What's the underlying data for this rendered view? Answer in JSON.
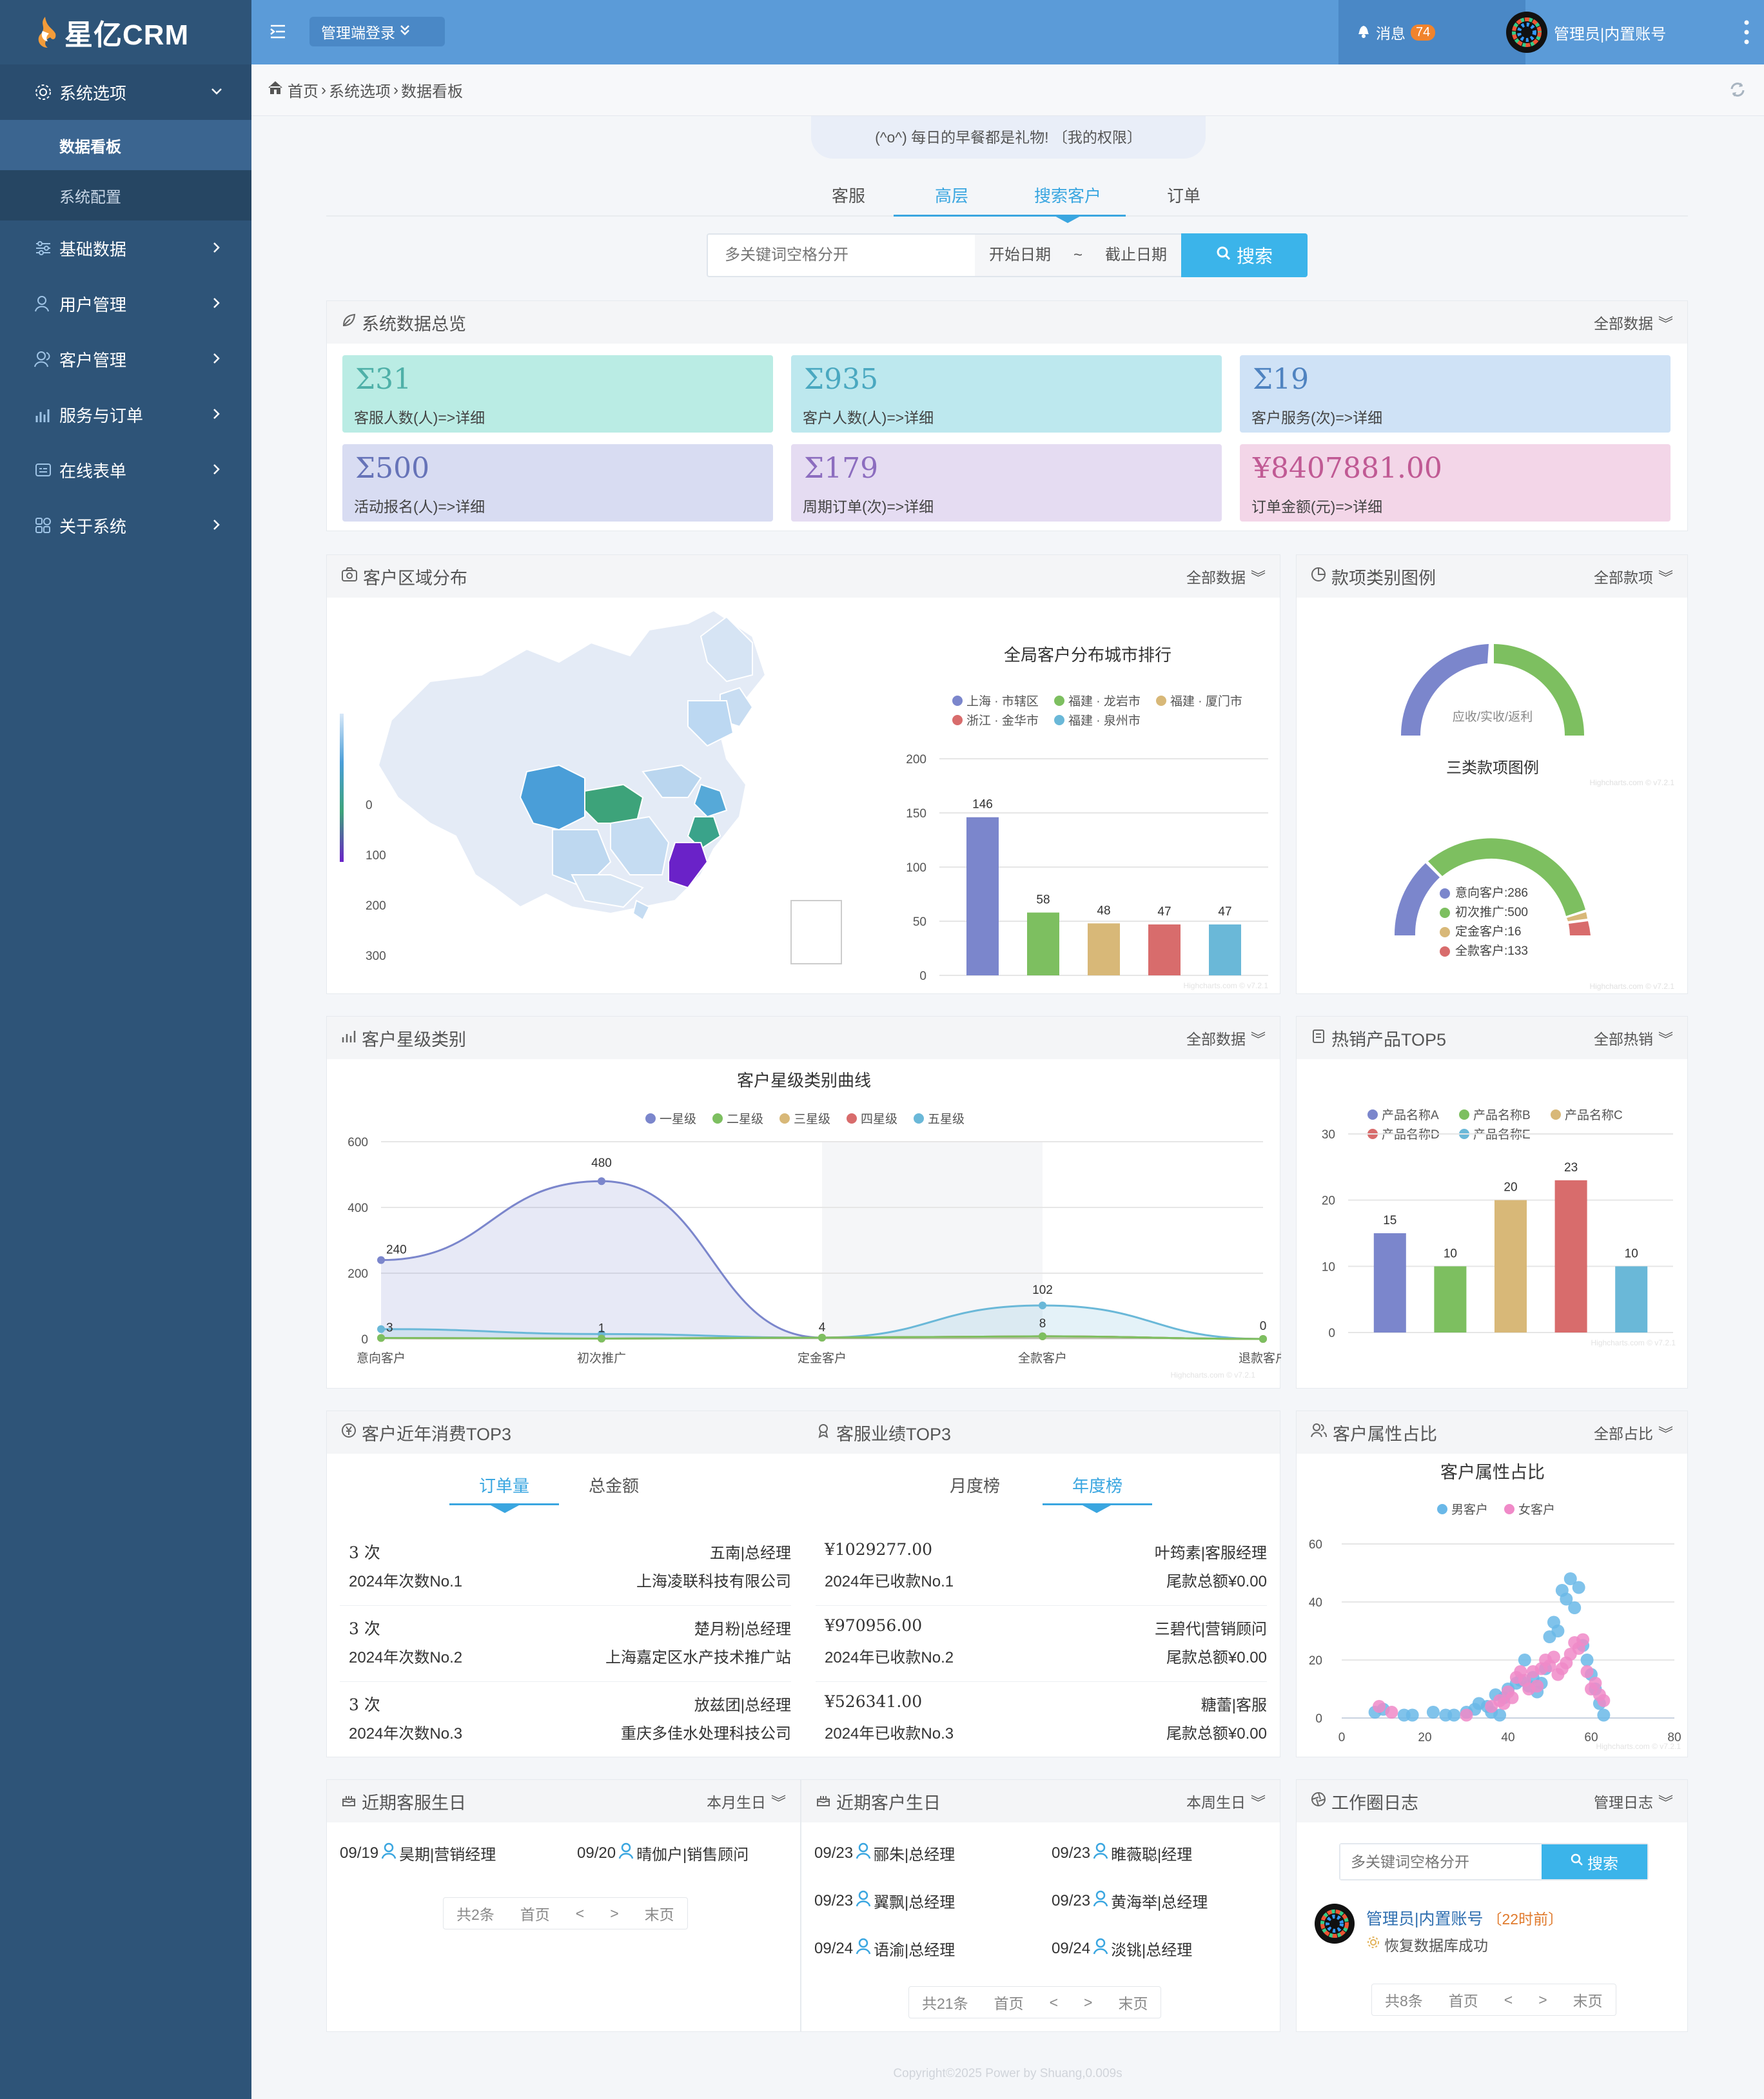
{
  "app": {
    "logo": "星亿CRM"
  },
  "sidebar": {
    "items": [
      {
        "label": "系统选项",
        "icon": "settings-icon"
      },
      {
        "label": "基础数据",
        "icon": "sliders-icon"
      },
      {
        "label": "用户管理",
        "icon": "user-icon"
      },
      {
        "label": "客户管理",
        "icon": "users-icon"
      },
      {
        "label": "服务与订单",
        "icon": "chart-icon"
      },
      {
        "label": "在线表单",
        "icon": "form-icon"
      },
      {
        "label": "关于系统",
        "icon": "apps-icon"
      }
    ],
    "sub": [
      "数据看板",
      "系统配置"
    ]
  },
  "topbar": {
    "dropdown": "管理端登录",
    "messages": "消息",
    "msg_count": "74",
    "user": "管理员|内置账号"
  },
  "breadcrumb": [
    "首页",
    "系统选项",
    "数据看板"
  ],
  "notice": "(^o^) 每日的早餐都是礼物! 〔我的权限〕",
  "main_tabs": [
    "客服",
    "高层",
    "搜索客户",
    "订单"
  ],
  "search": {
    "placeholder": "多关键词空格分开",
    "start": "开始日期",
    "sep": "~",
    "end": "截止日期",
    "button": "搜索"
  },
  "overview": {
    "title": "系统数据总览",
    "filter": "全部数据",
    "cards": [
      {
        "value": "Σ31",
        "label": "客服人数(人)=>详细",
        "color": "#baece4",
        "text": "#4fb0a8"
      },
      {
        "value": "Σ935",
        "label": "客户人数(人)=>详细",
        "color": "#bde8ee",
        "text": "#4aa8c0"
      },
      {
        "value": "Σ19",
        "label": "客户服务(次)=>详细",
        "color": "#cfe2f6",
        "text": "#4f83c0"
      },
      {
        "value": "Σ500",
        "label": "活动报名(人)=>详细",
        "color": "#d8dcf2",
        "text": "#6673b8"
      },
      {
        "value": "Σ179",
        "label": "周期订单(次)=>详细",
        "color": "#e5dcf2",
        "text": "#8c6dbf"
      },
      {
        "value": "¥8407881.00",
        "label": "订单金额(元)=>详细",
        "color": "#f3d6e8",
        "text": "#c05a94"
      }
    ]
  },
  "region": {
    "title": "客户区域分布",
    "filter": "全部数据",
    "legend_ticks": [
      "0",
      "100",
      "200",
      "300"
    ]
  },
  "category": {
    "title": "款项类别图例",
    "filter": "全部款项",
    "gauge1_label": "应收/实收/返利",
    "chart_title": "三类款项图例",
    "legend": [
      {
        "name": "意向客户:286",
        "color": "#7b86cc"
      },
      {
        "name": "初次推广:500",
        "color": "#7dbf60"
      },
      {
        "name": "定金客户:16",
        "color": "#d8b878"
      },
      {
        "name": "全款客户:133",
        "color": "#d86c6c"
      }
    ]
  },
  "star": {
    "title": "客户星级类别",
    "filter": "全部数据"
  },
  "hot": {
    "title": "热销产品TOP5",
    "filter": "全部热销"
  },
  "consume": {
    "title": "客户近年消费TOP3",
    "tabs": [
      "订单量",
      "总金额"
    ],
    "rows": [
      {
        "count": "3 次",
        "rank": "2024年次数No.1",
        "person": "五南|总经理",
        "company": "上海凌联科技有限公司"
      },
      {
        "count": "3 次",
        "rank": "2024年次数No.2",
        "person": "楚月粉|总经理",
        "company": "上海嘉定区水产技术推广站"
      },
      {
        "count": "3 次",
        "rank": "2024年次数No.3",
        "person": "放兹团|总经理",
        "company": "重庆多佳水处理科技公司"
      }
    ]
  },
  "perf": {
    "title": "客服业绩TOP3",
    "tabs": [
      "月度榜",
      "年度榜"
    ],
    "rows": [
      {
        "amount": "¥1029277.00",
        "rank": "2024年已收款No.1",
        "person": "叶筠素|客服经理",
        "tail": "尾款总额¥0.00"
      },
      {
        "amount": "¥970956.00",
        "rank": "2024年已收款No.2",
        "person": "三碧代|营销顾问",
        "tail": "尾款总额¥0.00"
      },
      {
        "amount": "¥526341.00",
        "rank": "2024年已收款No.3",
        "person": "糖蕾|客服",
        "tail": "尾款总额¥0.00"
      }
    ]
  },
  "attr": {
    "title": "客户属性占比",
    "filter": "全部占比"
  },
  "staff_bday": {
    "title": "近期客服生日",
    "filter": "本月生日",
    "items": [
      {
        "date": "09/19",
        "name": "昊期|营销经理"
      },
      {
        "date": "09/20",
        "name": "晴伽户|销售顾问"
      }
    ],
    "pager": [
      "共2条",
      "首页",
      "<",
      ">",
      "末页"
    ]
  },
  "cust_bday": {
    "title": "近期客户生日",
    "filter": "本周生日",
    "items": [
      {
        "date": "09/23",
        "name": "郦朱|总经理"
      },
      {
        "date": "09/23",
        "name": "睢薇聪|经理"
      },
      {
        "date": "09/23",
        "name": "翼飘|总经理"
      },
      {
        "date": "09/23",
        "name": "黄海举|总经理"
      },
      {
        "date": "09/24",
        "name": "语渝|总经理"
      },
      {
        "date": "09/24",
        "name": "淡铫|总经理"
      }
    ],
    "pager": [
      "共21条",
      "首页",
      "<",
      ">",
      "末页"
    ]
  },
  "worklog": {
    "title": "工作圈日志",
    "filter": "管理日志",
    "placeholder": "多关键词空格分开",
    "button": "搜索",
    "user": "管理员|内置账号",
    "ago": "〔22时前〕",
    "msg": "恢复数据库成功",
    "pager": [
      "共8条",
      "首页",
      "<",
      ">",
      "末页"
    ]
  },
  "footer": "Copyright©2025 Power by Shuang,0.009s",
  "watermark": "Highcharts.com © v7.2.1",
  "chart_data": [
    {
      "type": "bar",
      "title": "全局客户分布城市排行",
      "categories": [
        "上海 · 市辖区",
        "福建 · 龙岩市",
        "福建 · 厦门市",
        "浙江 · 金华市",
        "福建 · 泉州市"
      ],
      "values": [
        146,
        58,
        48,
        47,
        47
      ],
      "colors": [
        "#7b86cc",
        "#7dbf60",
        "#d8b878",
        "#d86c6c",
        "#6ab8d8"
      ],
      "yticks": [
        0,
        50,
        100,
        150,
        200
      ],
      "ylim": [
        0,
        200
      ]
    },
    {
      "type": "area",
      "title": "客户星级类别曲线",
      "categories": [
        "意向客户",
        "初次推广",
        "定金客户",
        "全款客户",
        "退款客户"
      ],
      "yticks": [
        0,
        200,
        400,
        600
      ],
      "ylim": [
        0,
        600
      ],
      "series": [
        {
          "name": "一星级",
          "values": [
            240,
            480,
            4,
            8,
            0
          ],
          "color": "#7b86cc"
        },
        {
          "name": "二星级",
          "values": [
            3,
            1,
            4,
            8,
            0
          ],
          "color": "#7dbf60"
        },
        {
          "name": "三星级",
          "values": [
            3,
            1,
            4,
            8,
            0
          ],
          "color": "#d8b878"
        },
        {
          "name": "四星级",
          "values": [
            3,
            1,
            4,
            8,
            0
          ],
          "color": "#d86c6c"
        },
        {
          "name": "五星级",
          "values": [
            30,
            15,
            4,
            102,
            0
          ],
          "color": "#6ab8d8"
        }
      ]
    },
    {
      "type": "bar",
      "categories": [
        "产品名称A",
        "产品名称B",
        "产品名称C",
        "产品名称D",
        "产品名称E"
      ],
      "values": [
        15,
        10,
        20,
        23,
        10
      ],
      "colors": [
        "#7b86cc",
        "#7dbf60",
        "#d8b878",
        "#d86c6c",
        "#6ab8d8"
      ],
      "yticks": [
        0,
        10,
        20,
        30
      ],
      "ylim": [
        0,
        30
      ]
    },
    {
      "type": "scatter",
      "title": "客户属性占比",
      "xticks": [
        0,
        20,
        40,
        60,
        80
      ],
      "yticks": [
        0,
        20,
        40,
        60
      ],
      "series": [
        {
          "name": "男客户",
          "color": "#6ab8e8",
          "points": [
            [
              8,
              2
            ],
            [
              10,
              3
            ],
            [
              17,
              1
            ],
            [
              25,
              1
            ],
            [
              27,
              1
            ],
            [
              30,
              2
            ],
            [
              32,
              3
            ],
            [
              33,
              5
            ],
            [
              35,
              4
            ],
            [
              36,
              2
            ],
            [
              37,
              8
            ],
            [
              38,
              1
            ],
            [
              39,
              7
            ],
            [
              40,
              10
            ],
            [
              42,
              12
            ],
            [
              43,
              13
            ],
            [
              44,
              20
            ],
            [
              45,
              11
            ],
            [
              46,
              14
            ],
            [
              47,
              9
            ],
            [
              48,
              12
            ],
            [
              49,
              17
            ],
            [
              50,
              28
            ],
            [
              51,
              33
            ],
            [
              52,
              30
            ],
            [
              53,
              44
            ],
            [
              54,
              41
            ],
            [
              55,
              48
            ],
            [
              56,
              38
            ],
            [
              57,
              45
            ],
            [
              58,
              25
            ],
            [
              59,
              20
            ],
            [
              60,
              15
            ],
            [
              61,
              10
            ],
            [
              62,
              5
            ],
            [
              63,
              1
            ],
            [
              15,
              1
            ],
            [
              22,
              2
            ]
          ]
        },
        {
          "name": "女客户",
          "color": "#f08ac8",
          "points": [
            [
              9,
              4
            ],
            [
              12,
              2
            ],
            [
              30,
              1
            ],
            [
              38,
              6
            ],
            [
              40,
              9
            ],
            [
              41,
              7
            ],
            [
              42,
              14
            ],
            [
              43,
              16
            ],
            [
              44,
              13
            ],
            [
              45,
              10
            ],
            [
              46,
              16
            ],
            [
              47,
              11
            ],
            [
              48,
              17
            ],
            [
              49,
              20
            ],
            [
              50,
              18
            ],
            [
              51,
              21
            ],
            [
              52,
              15
            ],
            [
              53,
              17
            ],
            [
              54,
              19
            ],
            [
              55,
              22
            ],
            [
              56,
              26
            ],
            [
              57,
              24
            ],
            [
              58,
              27
            ],
            [
              59,
              16
            ],
            [
              60,
              10
            ],
            [
              61,
              12
            ],
            [
              62,
              8
            ],
            [
              63,
              6
            ],
            [
              36,
              4
            ],
            [
              39,
              5
            ]
          ]
        }
      ]
    }
  ]
}
